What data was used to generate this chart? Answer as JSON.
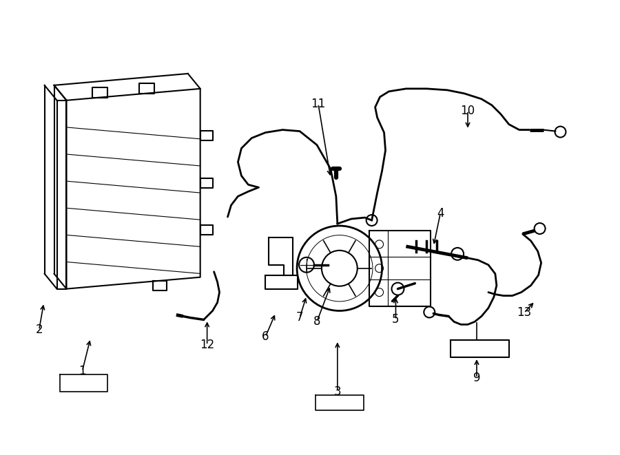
{
  "background_color": "#ffffff",
  "line_color": "#000000",
  "line_width": 1.5,
  "label_fontsize": 12,
  "fig_width": 9.0,
  "fig_height": 6.61
}
